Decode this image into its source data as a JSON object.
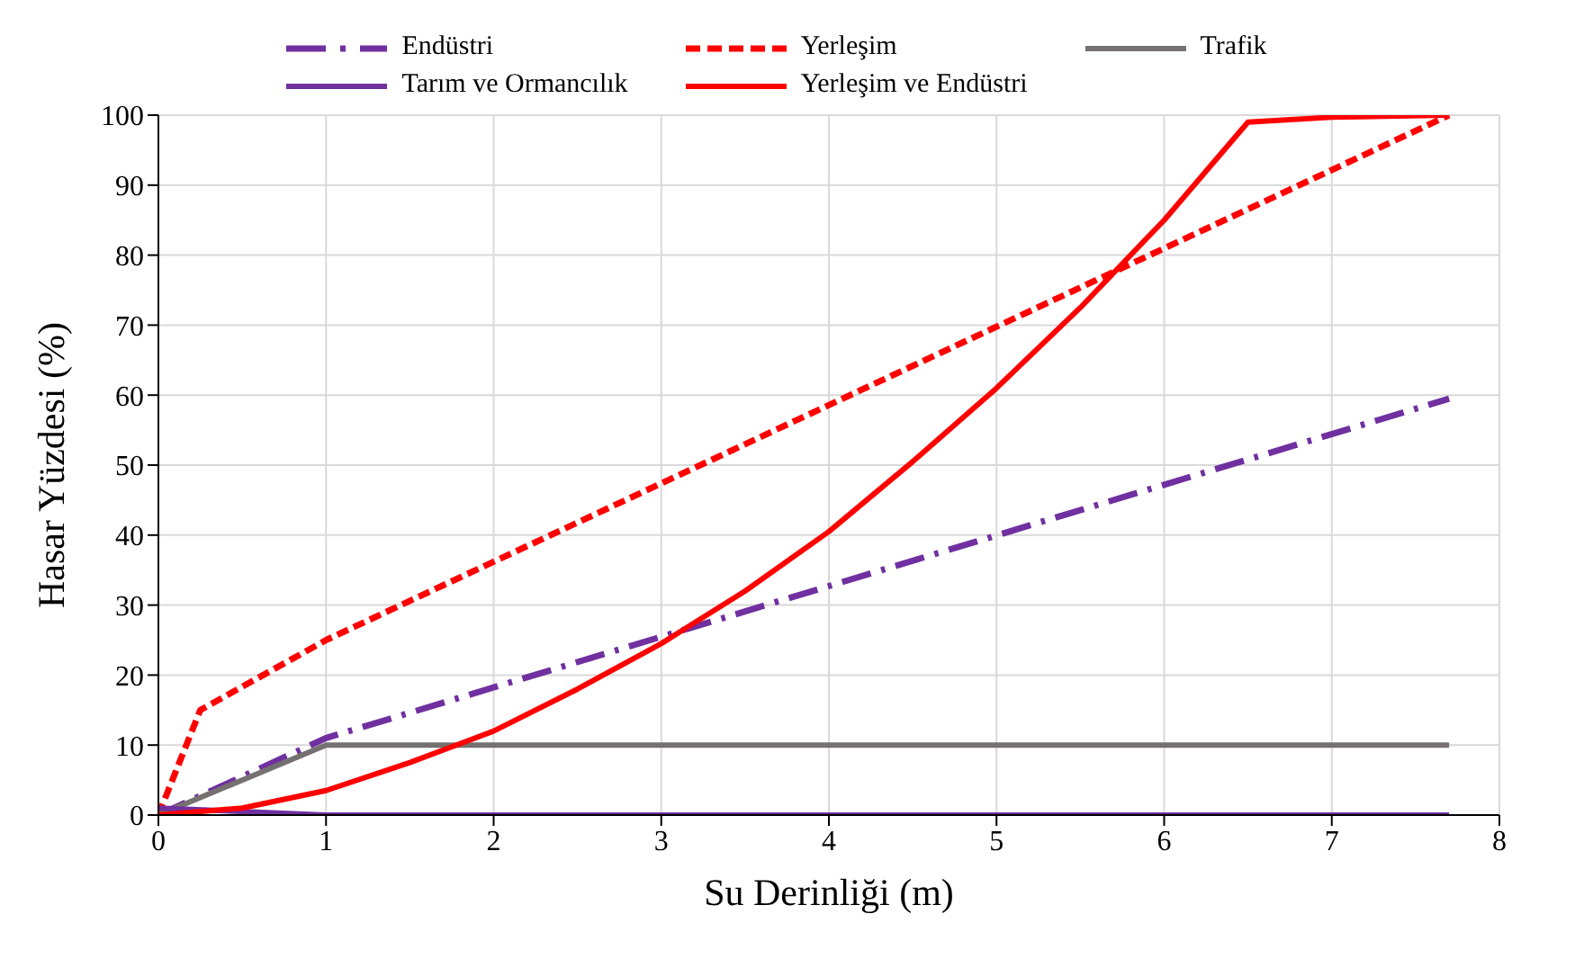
{
  "chart_data": {
    "type": "line",
    "xlabel": "Su Derinliği (m)",
    "ylabel": "Hasar Yüzdesi (%)",
    "xlim": [
      0,
      8
    ],
    "xticks": [
      0,
      1,
      2,
      3,
      4,
      5,
      6,
      7,
      8
    ],
    "ylim": [
      0,
      100
    ],
    "yticks": [
      0,
      10,
      20,
      30,
      40,
      50,
      60,
      70,
      80,
      90,
      100
    ],
    "grid": true,
    "legend": "top",
    "marker": "none",
    "series": [
      {
        "name": "Endüstri",
        "color": "#7030a0",
        "line_style": "dashdot",
        "x": [
          0,
          1,
          7.7
        ],
        "values": [
          0,
          11,
          59.5
        ]
      },
      {
        "name": "Yerleşim",
        "color": "#ff0000",
        "line_style": "dashed",
        "x": [
          0,
          0.25,
          1,
          7.7
        ],
        "values": [
          0,
          15,
          25,
          100
        ]
      },
      {
        "name": "Trafik",
        "color": "#767171",
        "line_style": "solid",
        "x": [
          0,
          1,
          7.7
        ],
        "values": [
          0,
          10,
          10
        ]
      },
      {
        "name": "Tarım ve Ormancılık",
        "color": "#7030a0",
        "line_style": "solid",
        "x": [
          0,
          1,
          7.7
        ],
        "values": [
          1,
          0,
          0
        ]
      },
      {
        "name": "Yerleşim ve Endüstri",
        "color": "#ff0000",
        "line_style": "solid",
        "x": [
          0,
          0.5,
          1,
          1.5,
          2,
          2.5,
          3,
          3.5,
          4,
          4.5,
          5,
          5.5,
          6,
          6.5,
          7,
          7.7
        ],
        "values": [
          0,
          1,
          3.5,
          7.5,
          12,
          18,
          24.5,
          32,
          40.5,
          50.5,
          61,
          72.5,
          85,
          99,
          99.7,
          100
        ]
      }
    ]
  }
}
